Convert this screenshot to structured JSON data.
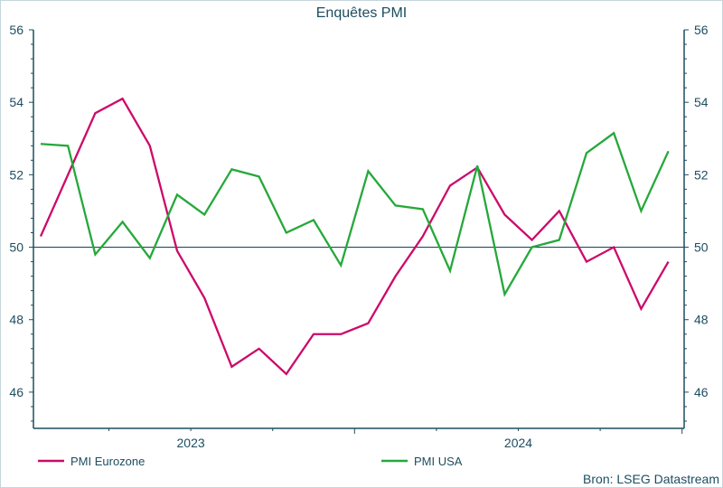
{
  "chart_data": {
    "type": "line",
    "title": "Enquêtes PMI",
    "source": "Bron: LSEG Datastream",
    "x": [
      "2023-01",
      "2023-02",
      "2023-03",
      "2023-04",
      "2023-05",
      "2023-06",
      "2023-07",
      "2023-08",
      "2023-09",
      "2023-10",
      "2023-11",
      "2023-12",
      "2024-01",
      "2024-02",
      "2024-03",
      "2024-04",
      "2024-05",
      "2024-06",
      "2024-07",
      "2024-08",
      "2024-09",
      "2024-10",
      "2024-11",
      "2024-12"
    ],
    "x_tick_labels": [
      "2023",
      "2024"
    ],
    "y_tick_labels": [
      "46",
      "48",
      "50",
      "52",
      "54",
      "56"
    ],
    "ylim": [
      45,
      56
    ],
    "reference_line": 50,
    "axes": "left and right, same scale",
    "grid": false,
    "legend_placement": "bottom",
    "series": [
      {
        "name": "PMI Eurozone",
        "color": "#cc0a6a",
        "values": [
          50.3,
          52.0,
          53.7,
          54.1,
          52.8,
          49.9,
          48.6,
          46.7,
          47.2,
          46.5,
          47.6,
          47.6,
          47.9,
          49.2,
          50.3,
          51.7,
          52.2,
          50.9,
          50.2,
          51.0,
          49.6,
          50.0,
          48.3,
          49.6
        ]
      },
      {
        "name": "PMI USA",
        "color": "#25a83a",
        "values": [
          52.85,
          52.8,
          49.8,
          50.7,
          49.7,
          51.45,
          50.9,
          52.15,
          51.95,
          50.4,
          50.75,
          49.5,
          52.1,
          51.15,
          51.05,
          49.35,
          52.25,
          48.7,
          50.0,
          50.2,
          52.6,
          53.15,
          51.0,
          52.65
        ]
      }
    ]
  }
}
